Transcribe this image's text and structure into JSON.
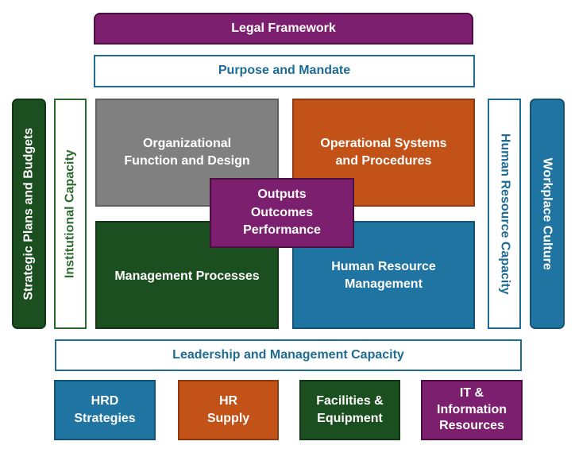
{
  "legal_framework": "Legal Framework",
  "purpose": "Purpose and Mandate",
  "strategic_plans": "Strategic Plans and Budgets",
  "institutional_capacity": "Institutional Capacity",
  "hr_capacity": "Human Resource Capacity",
  "workplace_culture": "Workplace Culture",
  "quadrants": {
    "org_function": [
      "Organizational",
      "Function and Design"
    ],
    "operational": [
      "Operational Systems",
      "and Procedures"
    ],
    "management_processes": [
      "Management Processes"
    ],
    "hr_management": [
      "Human Resource",
      "Management"
    ]
  },
  "center": [
    "Outputs",
    "Outcomes",
    "Performance"
  ],
  "leadership": "Leadership and Management Capacity",
  "bottom_boxes": {
    "hrd": [
      "HRD",
      "Strategies"
    ],
    "hr_supply": [
      "HR",
      "Supply"
    ],
    "facilities": [
      "Facilities &",
      "Equipment"
    ],
    "it": [
      "IT &",
      "Information",
      "Resources"
    ]
  },
  "colors": {
    "purple": "#7b1f6e",
    "dark_green": "#1c4f1f",
    "gray": "#808080",
    "orange": "#c25218",
    "blue": "#1f74a1"
  }
}
